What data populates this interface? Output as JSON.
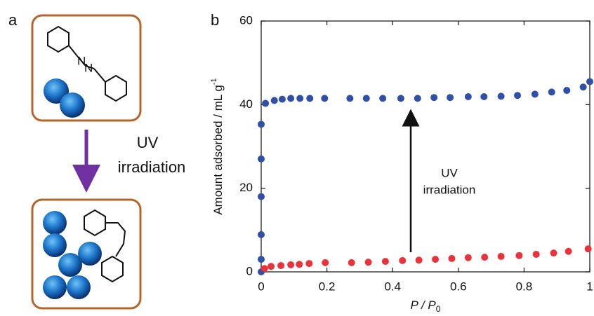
{
  "panel_a": {
    "label": "a",
    "arrow_label": [
      "UV",
      "irradiation"
    ]
  },
  "chart_data": {
    "type": "scatter",
    "label": "b",
    "xlabel": {
      "text": "P / P",
      "subscript": "0"
    },
    "ylabel": {
      "text": "Amount adsorbed / mL g",
      "superscript": "-1"
    },
    "annotation": [
      "UV",
      "irradiation"
    ],
    "xlim": [
      0,
      1
    ],
    "ylim": [
      0,
      60
    ],
    "xticks": [
      0,
      0.2,
      0.4,
      0.6,
      0.8,
      1
    ],
    "yticks": [
      0,
      20,
      40,
      60
    ],
    "series": [
      {
        "color": "#2f4fa8",
        "x": [
          0,
          0,
          0,
          0,
          0,
          0,
          0.013,
          0.04,
          0.064,
          0.09,
          0.118,
          0.148,
          0.193,
          0.27,
          0.32,
          0.37,
          0.425,
          0.476,
          0.526,
          0.575,
          0.63,
          0.678,
          0.73,
          0.78,
          0.833,
          0.884,
          0.93,
          0.98,
          1.0
        ],
        "values": [
          0,
          3,
          8.9,
          18,
          27,
          35.3,
          40.3,
          41,
          41.3,
          41.5,
          41.5,
          41.5,
          41.5,
          41.5,
          41.5,
          41.5,
          41.5,
          41.5,
          41.7,
          41.7,
          41.9,
          41.9,
          42,
          42.2,
          42.5,
          43,
          43.4,
          44.2,
          45.5
        ]
      },
      {
        "color": "#e8333a",
        "x": [
          0.01,
          0.03,
          0.06,
          0.09,
          0.116,
          0.146,
          0.195,
          0.275,
          0.326,
          0.378,
          0.43,
          0.48,
          0.53,
          0.58,
          0.63,
          0.68,
          0.73,
          0.785,
          0.837,
          0.89,
          0.935,
          0.995
        ],
        "values": [
          0.8,
          1.3,
          1.5,
          1.7,
          1.8,
          2,
          2.2,
          2.2,
          2.3,
          2.5,
          2.7,
          2.8,
          3,
          3.2,
          3.4,
          3.5,
          3.7,
          3.9,
          4.2,
          4.5,
          4.9,
          5.5
        ]
      }
    ]
  }
}
